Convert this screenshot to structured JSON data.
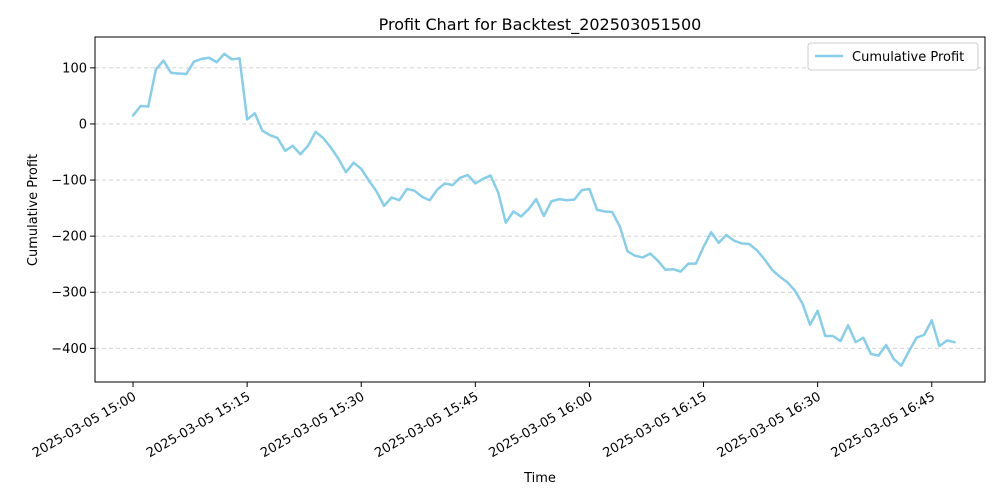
{
  "chart_data": {
    "type": "line",
    "title": "Profit Chart for Backtest_202503051500",
    "xlabel": "Time",
    "ylabel": "Cumulative Profit",
    "grid": "y-dashed",
    "legend_position": "top-right",
    "x_tick_labels": [
      "2025-03-05 15:00",
      "2025-03-05 15:15",
      "2025-03-05 15:30",
      "2025-03-05 15:45",
      "2025-03-05 16:00",
      "2025-03-05 16:15",
      "2025-03-05 16:30",
      "2025-03-05 16:45"
    ],
    "y_ticks": [
      100,
      0,
      -100,
      -200,
      -300,
      -400
    ],
    "ylim": [
      -460,
      155
    ],
    "xlim": [
      "2025-03-05 14:55",
      "2025-03-05 16:52"
    ],
    "series": [
      {
        "name": "Cumulative Profit",
        "color": "#87ceeb",
        "x": [
          "2025-03-05 15:00",
          "2025-03-05 15:01",
          "2025-03-05 15:02",
          "2025-03-05 15:03",
          "2025-03-05 15:04",
          "2025-03-05 15:05",
          "2025-03-05 15:06",
          "2025-03-05 15:07",
          "2025-03-05 15:08",
          "2025-03-05 15:09",
          "2025-03-05 15:10",
          "2025-03-05 15:11",
          "2025-03-05 15:12",
          "2025-03-05 15:13",
          "2025-03-05 15:14",
          "2025-03-05 15:15",
          "2025-03-05 15:16",
          "2025-03-05 15:17",
          "2025-03-05 15:18",
          "2025-03-05 15:19",
          "2025-03-05 15:20",
          "2025-03-05 15:21",
          "2025-03-05 15:22",
          "2025-03-05 15:23",
          "2025-03-05 15:24",
          "2025-03-05 15:25",
          "2025-03-05 15:26",
          "2025-03-05 15:27",
          "2025-03-05 15:28",
          "2025-03-05 15:29",
          "2025-03-05 15:30",
          "2025-03-05 15:31",
          "2025-03-05 15:32",
          "2025-03-05 15:33",
          "2025-03-05 15:34",
          "2025-03-05 15:35",
          "2025-03-05 15:36",
          "2025-03-05 15:37",
          "2025-03-05 15:38",
          "2025-03-05 15:39",
          "2025-03-05 15:40",
          "2025-03-05 15:41",
          "2025-03-05 15:42",
          "2025-03-05 15:43",
          "2025-03-05 15:44",
          "2025-03-05 15:45",
          "2025-03-05 15:46",
          "2025-03-05 15:47",
          "2025-03-05 15:48",
          "2025-03-05 15:49",
          "2025-03-05 15:50",
          "2025-03-05 15:51",
          "2025-03-05 15:52",
          "2025-03-05 15:53",
          "2025-03-05 15:54",
          "2025-03-05 15:55",
          "2025-03-05 15:56",
          "2025-03-05 15:57",
          "2025-03-05 15:58",
          "2025-03-05 15:59",
          "2025-03-05 16:00",
          "2025-03-05 16:01",
          "2025-03-05 16:02",
          "2025-03-05 16:03",
          "2025-03-05 16:04",
          "2025-03-05 16:05",
          "2025-03-05 16:06",
          "2025-03-05 16:07",
          "2025-03-05 16:08",
          "2025-03-05 16:09",
          "2025-03-05 16:10",
          "2025-03-05 16:11",
          "2025-03-05 16:12",
          "2025-03-05 16:13",
          "2025-03-05 16:14",
          "2025-03-05 16:15",
          "2025-03-05 16:16",
          "2025-03-05 16:17",
          "2025-03-05 16:18",
          "2025-03-05 16:19",
          "2025-03-05 16:20",
          "2025-03-05 16:21",
          "2025-03-05 16:22",
          "2025-03-05 16:23",
          "2025-03-05 16:24",
          "2025-03-05 16:25",
          "2025-03-05 16:26",
          "2025-03-05 16:27",
          "2025-03-05 16:28",
          "2025-03-05 16:29",
          "2025-03-05 16:30",
          "2025-03-05 16:31",
          "2025-03-05 16:32",
          "2025-03-05 16:33",
          "2025-03-05 16:34",
          "2025-03-05 16:35",
          "2025-03-05 16:36",
          "2025-03-05 16:37",
          "2025-03-05 16:38",
          "2025-03-05 16:39",
          "2025-03-05 16:40",
          "2025-03-05 16:41",
          "2025-03-05 16:42",
          "2025-03-05 16:43",
          "2025-03-05 16:44",
          "2025-03-05 16:45",
          "2025-03-05 16:46",
          "2025-03-05 16:47",
          "2025-03-05 16:48"
        ],
        "y": [
          15,
          32,
          31,
          97,
          113,
          91,
          90,
          89,
          111,
          116,
          118,
          110,
          125,
          115,
          117,
          8,
          19,
          -12,
          -20,
          -25,
          -48,
          -39,
          -54,
          -39,
          -14,
          -25,
          -42,
          -62,
          -86,
          -69,
          -80,
          -101,
          -120,
          -146,
          -131,
          -136,
          -116,
          -119,
          -130,
          -136,
          -117,
          -106,
          -109,
          -96,
          -91,
          -106,
          -98,
          -92,
          -122,
          -176,
          -156,
          -165,
          -152,
          -134,
          -164,
          -138,
          -134,
          -136,
          -135,
          -118,
          -116,
          -153,
          -156,
          -157,
          -183,
          -227,
          -235,
          -238,
          -231,
          -244,
          -260,
          -259,
          -263,
          -249,
          -249,
          -219,
          -193,
          -212,
          -198,
          -208,
          -213,
          -214,
          -225,
          -241,
          -260,
          -272,
          -282,
          -297,
          -320,
          -358,
          -333,
          -378,
          -378,
          -387,
          -359,
          -389,
          -381,
          -410,
          -413,
          -394,
          -419,
          -431,
          -405,
          -381,
          -376,
          -350,
          -396,
          -386,
          -389
        ]
      }
    ]
  }
}
